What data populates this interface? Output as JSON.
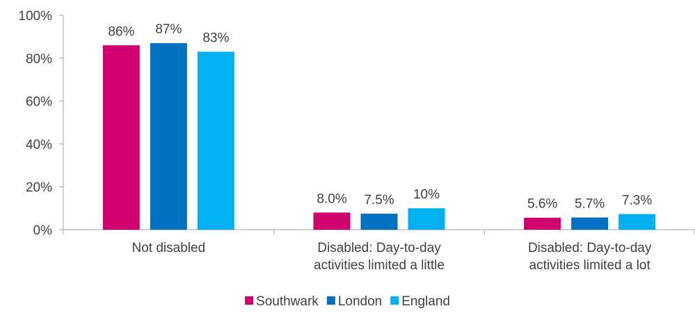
{
  "chart_data": {
    "type": "bar",
    "categories": [
      [
        "Not disabled"
      ],
      [
        "Disabled: Day-to-day",
        "activities limited a little"
      ],
      [
        "Disabled: Day-to-day",
        "activities limited a lot"
      ]
    ],
    "series": [
      {
        "name": "Southwark",
        "color": "#D1006F",
        "values": [
          0.86,
          0.08,
          0.056
        ],
        "labels": [
          "86%",
          "8.0%",
          "5.6%"
        ]
      },
      {
        "name": "London",
        "color": "#0070C0",
        "values": [
          0.87,
          0.075,
          0.057
        ],
        "labels": [
          "87%",
          "7.5%",
          "5.7%"
        ]
      },
      {
        "name": "England",
        "color": "#00B0F0",
        "values": [
          0.83,
          0.1,
          0.073
        ],
        "labels": [
          "83%",
          "10%",
          "7.3%"
        ]
      }
    ],
    "ylim": [
      0,
      1
    ],
    "yticks": [
      0,
      0.2,
      0.4,
      0.6,
      0.8,
      1.0
    ],
    "ytick_labels": [
      "0%",
      "20%",
      "40%",
      "60%",
      "80%",
      "100%"
    ],
    "legend_position": "bottom",
    "grid": false,
    "axis_color": "#A6A6A6"
  }
}
